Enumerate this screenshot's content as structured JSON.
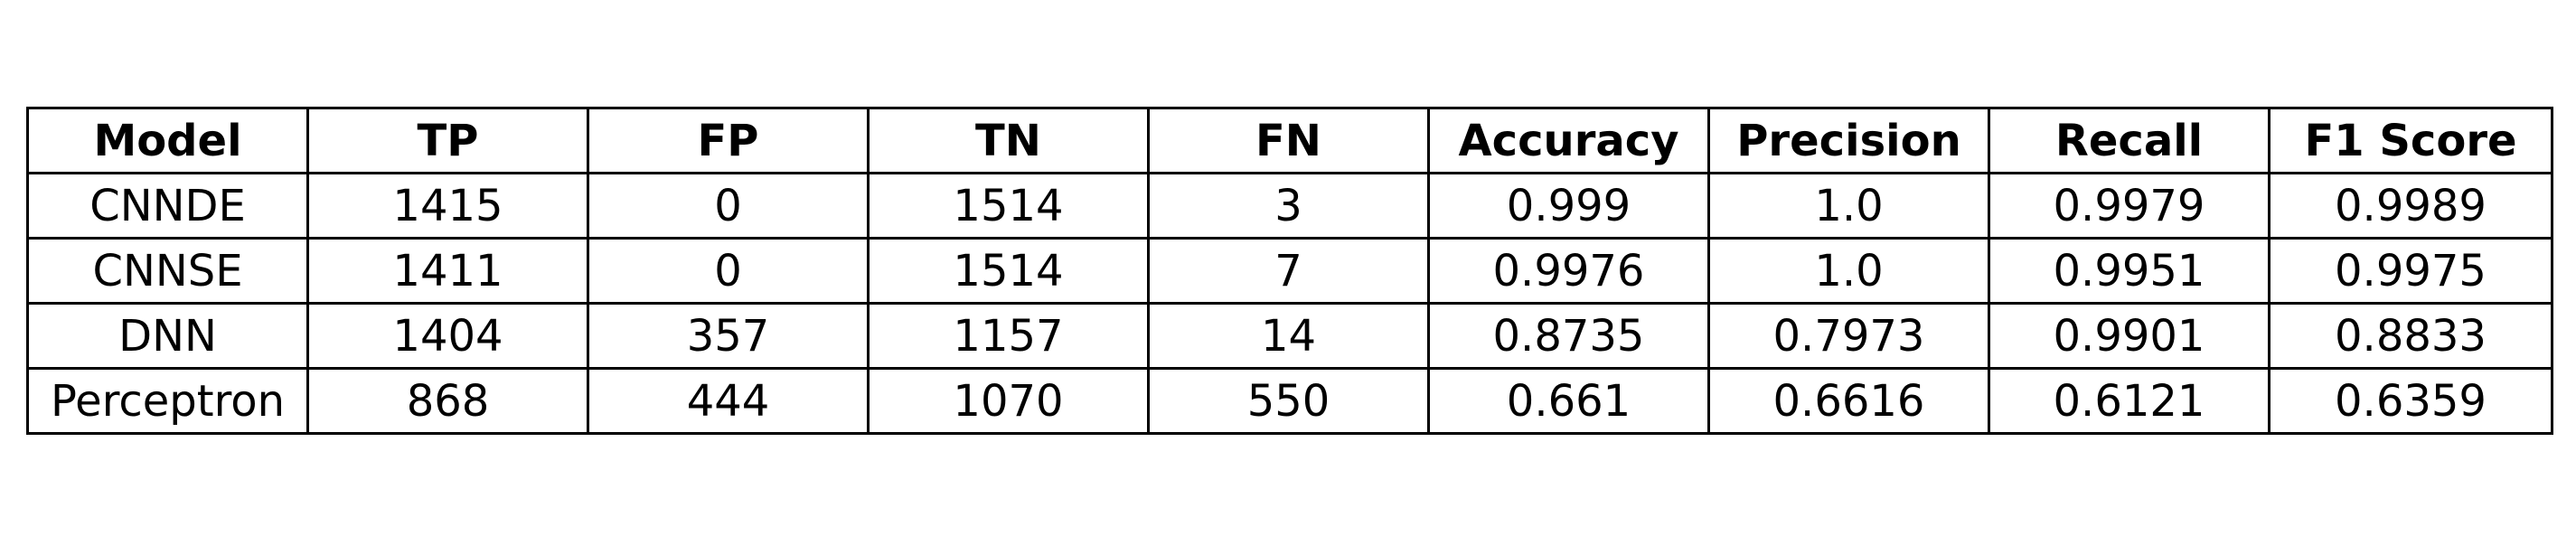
{
  "chart_data": {
    "type": "table",
    "columns": [
      "Model",
      "TP",
      "FP",
      "TN",
      "FN",
      "Accuracy",
      "Precision",
      "Recall",
      "F1 Score"
    ],
    "rows": [
      [
        "CNNDE",
        "1415",
        "0",
        "1514",
        "3",
        "0.999",
        "1.0",
        "0.9979",
        "0.9989"
      ],
      [
        "CNNSE",
        "1411",
        "0",
        "1514",
        "7",
        "0.9976",
        "1.0",
        "0.9951",
        "0.9975"
      ],
      [
        "DNN",
        "1404",
        "357",
        "1157",
        "14",
        "0.8735",
        "0.7973",
        "0.9901",
        "0.8833"
      ],
      [
        "Perceptron",
        "868",
        "444",
        "1070",
        "550",
        "0.661",
        "0.6616",
        "0.6121",
        "0.6359"
      ]
    ]
  }
}
